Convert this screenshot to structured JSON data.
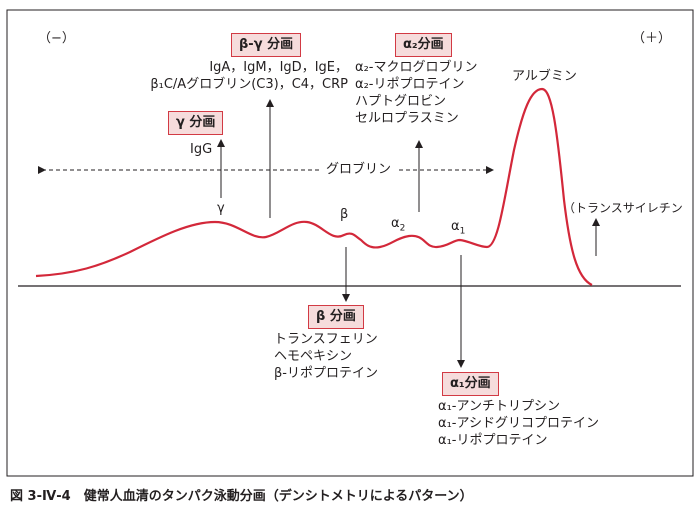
{
  "figure": {
    "caption": "図 3-Ⅳ-4　健常人血清のタンパク泳動分画（デンシトメトリによるパターン）",
    "polarity": {
      "negative": "（−）",
      "positive": "（＋）"
    },
    "curve_color": "#d3283a",
    "badge_border": "#d23a44",
    "badge_fill": "#f6dcdc"
  },
  "groups": {
    "globulin_label": "グロブリン",
    "albumin_label": "アルブミン",
    "transthyretin_label": "（トランスサイレチン"
  },
  "peaks": {
    "gamma": "γ",
    "beta": "β",
    "alpha2": "α",
    "alpha2_sub": "2",
    "alpha1": "α",
    "alpha1_sub": "1"
  },
  "fractions": {
    "gamma": {
      "title": "γ 分画",
      "items": [
        "IgG"
      ]
    },
    "beta_gamma": {
      "title": "β‑γ 分画",
      "items": [
        "IgA，IgM，IgD，IgE，",
        "β₁C/Aグロブリン(C3)，C4，CRP"
      ]
    },
    "alpha2": {
      "title": "α₂分画",
      "items": [
        "α₂-マクログロブリン",
        "α₂-リポプロテイン",
        "ハプトグロビン",
        "セルロプラスミン"
      ]
    },
    "beta": {
      "title": "β 分画",
      "items": [
        "トランスフェリン",
        "ヘモペキシン",
        "β‑リポプロテイン"
      ]
    },
    "alpha1": {
      "title": "α₁分画",
      "items": [
        "α₁-アンチトリプシン",
        "α₁-アシドグリコプロテイン",
        "α₁-リポプロテイン"
      ]
    }
  }
}
